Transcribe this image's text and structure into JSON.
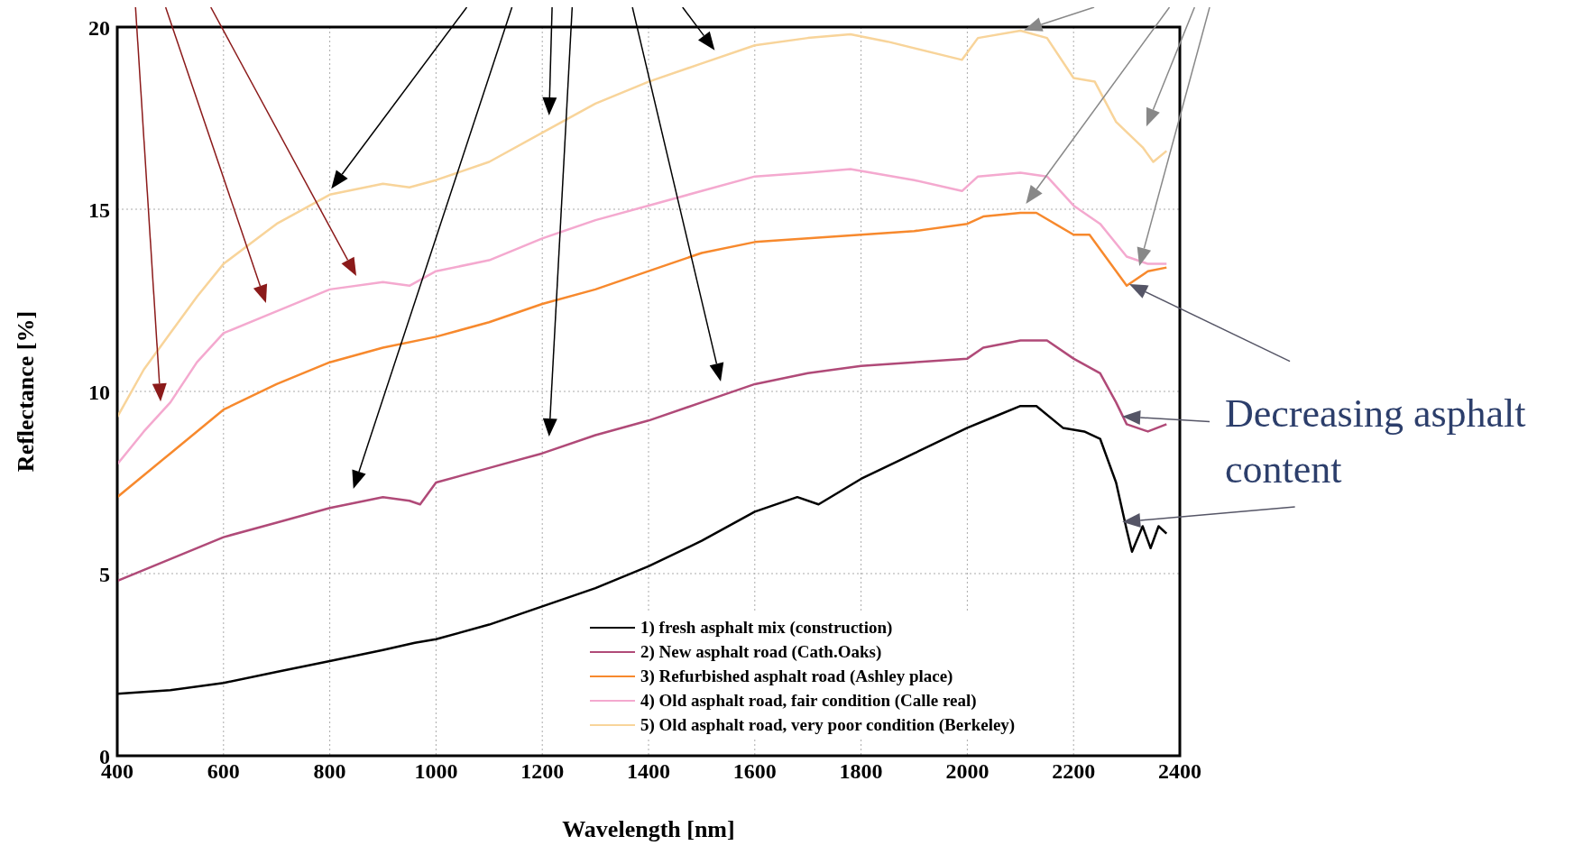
{
  "chart_data": {
    "type": "line",
    "xlabel": "Wavelength [nm]",
    "ylabel": "Reflectance [%]",
    "xlim": [
      400,
      2400
    ],
    "xticks": [
      400,
      600,
      800,
      1000,
      1200,
      1400,
      1600,
      1800,
      2000,
      2200,
      2400
    ],
    "ylim": [
      0,
      20
    ],
    "yticks": [
      0,
      5,
      10,
      15,
      20
    ],
    "grid": true,
    "legend": "bottom right",
    "line_style": "solid",
    "annotations": [
      "Decreasing asphalt content"
    ],
    "series": [
      {
        "name": "1) fresh asphalt mix (construction)",
        "color": "#000000",
        "x": [
          400,
          500,
          600,
          700,
          800,
          900,
          960,
          1000,
          1100,
          1200,
          1300,
          1400,
          1500,
          1600,
          1680,
          1720,
          1800,
          1900,
          2000,
          2050,
          2100,
          2130,
          2180,
          2220,
          2250,
          2280,
          2300,
          2310,
          2330,
          2345,
          2360,
          2375
        ],
        "values": [
          1.7,
          1.8,
          2.0,
          2.3,
          2.6,
          2.9,
          3.1,
          3.2,
          3.6,
          4.1,
          4.6,
          5.2,
          5.9,
          6.7,
          7.1,
          6.9,
          7.6,
          8.3,
          9.0,
          9.3,
          9.6,
          9.6,
          9.0,
          8.9,
          8.7,
          7.5,
          6.2,
          5.6,
          6.3,
          5.7,
          6.3,
          6.1
        ]
      },
      {
        "name": "2) New asphalt road (Cath.Oaks)",
        "color": "#b04a78",
        "x": [
          400,
          500,
          600,
          700,
          800,
          900,
          950,
          970,
          1000,
          1100,
          1200,
          1300,
          1400,
          1500,
          1600,
          1700,
          1800,
          1900,
          2000,
          2030,
          2100,
          2150,
          2200,
          2250,
          2280,
          2300,
          2340,
          2375
        ],
        "values": [
          4.8,
          5.4,
          6.0,
          6.4,
          6.8,
          7.1,
          7.0,
          6.9,
          7.5,
          7.9,
          8.3,
          8.8,
          9.2,
          9.7,
          10.2,
          10.5,
          10.7,
          10.8,
          10.9,
          11.2,
          11.4,
          11.4,
          10.9,
          10.5,
          9.7,
          9.1,
          8.9,
          9.1
        ]
      },
      {
        "name": "3) Refurbished asphalt road (Ashley place)",
        "color": "#f7892d",
        "x": [
          400,
          500,
          600,
          700,
          800,
          900,
          1000,
          1100,
          1200,
          1300,
          1400,
          1500,
          1600,
          1700,
          1800,
          1900,
          2000,
          2030,
          2100,
          2130,
          2200,
          2230,
          2260,
          2300,
          2340,
          2375
        ],
        "values": [
          7.1,
          8.3,
          9.5,
          10.2,
          10.8,
          11.2,
          11.5,
          11.9,
          12.4,
          12.8,
          13.3,
          13.8,
          14.1,
          14.2,
          14.3,
          14.4,
          14.6,
          14.8,
          14.9,
          14.9,
          14.3,
          14.3,
          13.7,
          12.9,
          13.3,
          13.4
        ]
      },
      {
        "name": "4) Old asphalt road, fair condition (Calle real)",
        "color": "#f4a9cf",
        "x": [
          400,
          450,
          500,
          550,
          600,
          700,
          800,
          900,
          950,
          1000,
          1100,
          1200,
          1300,
          1400,
          1500,
          1600,
          1700,
          1780,
          1900,
          1990,
          2020,
          2100,
          2150,
          2200,
          2250,
          2300,
          2340,
          2375
        ],
        "values": [
          8.0,
          8.9,
          9.7,
          10.8,
          11.6,
          12.2,
          12.8,
          13.0,
          12.9,
          13.3,
          13.6,
          14.2,
          14.7,
          15.1,
          15.5,
          15.9,
          16.0,
          16.1,
          15.8,
          15.5,
          15.9,
          16.0,
          15.9,
          15.1,
          14.6,
          13.7,
          13.5,
          13.5
        ]
      },
      {
        "name": "5) Old asphalt road, very poor condition (Berkeley)",
        "color": "#f8d49a",
        "x": [
          400,
          450,
          500,
          550,
          600,
          700,
          800,
          900,
          950,
          1000,
          1100,
          1200,
          1300,
          1400,
          1500,
          1600,
          1700,
          1780,
          1850,
          1990,
          2020,
          2100,
          2150,
          2200,
          2240,
          2280,
          2330,
          2350,
          2375
        ],
        "values": [
          9.3,
          10.6,
          11.6,
          12.6,
          13.5,
          14.6,
          15.4,
          15.7,
          15.6,
          15.8,
          16.3,
          17.1,
          17.9,
          18.5,
          19.0,
          19.5,
          19.7,
          19.8,
          19.6,
          19.1,
          19.7,
          19.9,
          19.7,
          18.6,
          18.5,
          17.4,
          16.7,
          16.3,
          16.6
        ]
      }
    ]
  }
}
